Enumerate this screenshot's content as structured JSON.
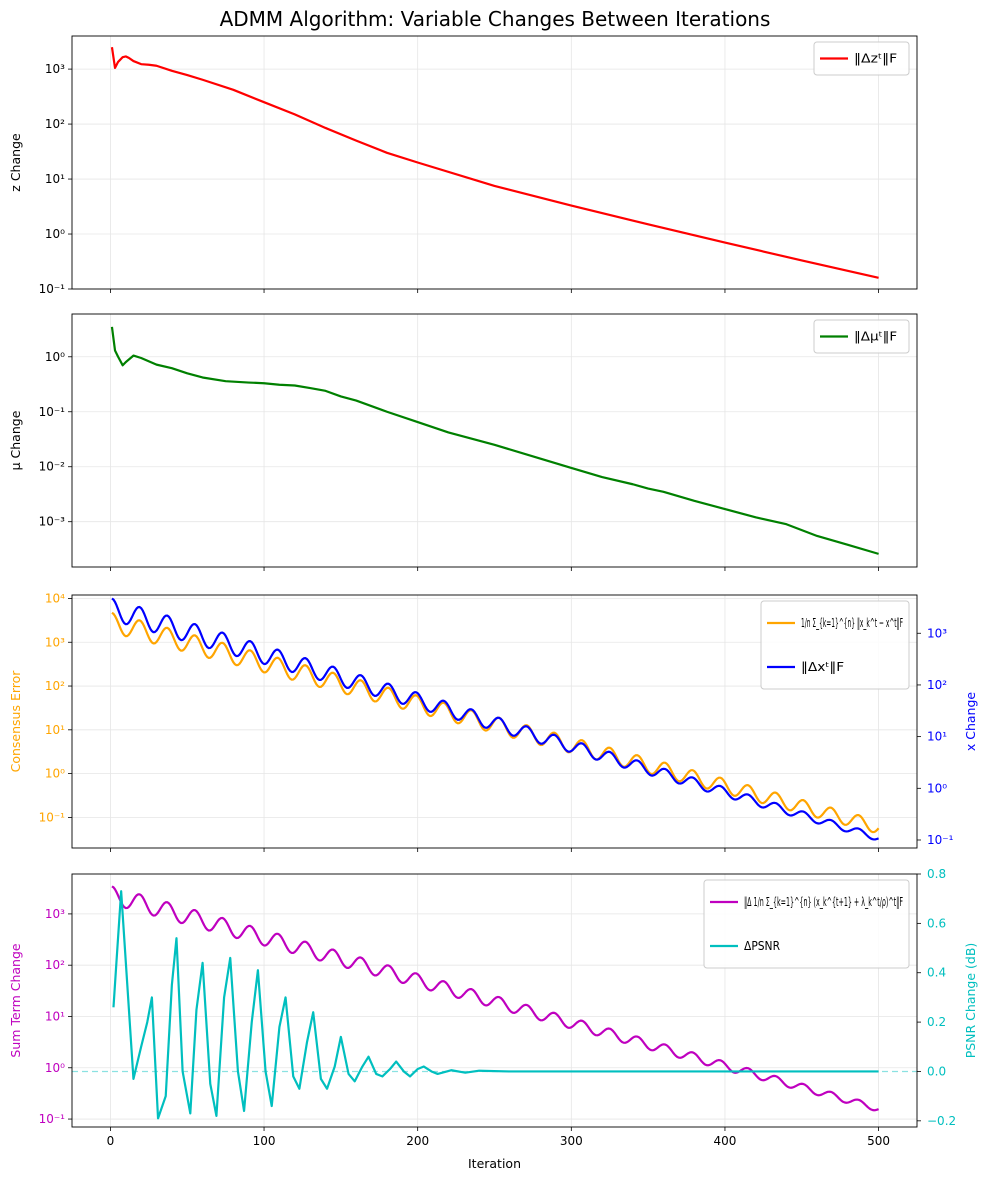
{
  "title": "ADMM Algorithm: Variable Changes Between Iterations",
  "chart_data": [
    {
      "type": "line",
      "ylabel": "z Change",
      "yscale": "log",
      "ylim": [
        0.1,
        4000
      ],
      "xlim": [
        -25,
        525
      ],
      "xticks": [
        0,
        100,
        200,
        300,
        400,
        500
      ],
      "yticks": [
        0.1,
        1,
        10,
        100,
        1000
      ],
      "yticklabels": [
        "10⁻¹",
        "10⁰",
        "10¹",
        "10²",
        "10³"
      ],
      "grid": true,
      "legend_position": "top-right",
      "series": [
        {
          "name": "‖Δzᵗ‖F",
          "color": "#ff0000",
          "x": [
            1,
            3,
            5,
            8,
            10,
            12,
            15,
            20,
            25,
            30,
            40,
            50,
            60,
            80,
            100,
            120,
            140,
            160,
            180,
            200,
            250,
            300,
            350,
            400,
            450,
            500
          ],
          "y": [
            2500,
            1050,
            1350,
            1650,
            1700,
            1600,
            1400,
            1230,
            1200,
            1150,
            930,
            780,
            640,
            420,
            250,
            150,
            85,
            50,
            30,
            20,
            7.5,
            3.3,
            1.5,
            0.7,
            0.33,
            0.16
          ]
        }
      ]
    },
    {
      "type": "line",
      "ylabel": "μ Change",
      "yscale": "log",
      "ylim": [
        0.00015,
        6
      ],
      "xlim": [
        -25,
        525
      ],
      "xticks": [
        0,
        100,
        200,
        300,
        400,
        500
      ],
      "yticks": [
        0.001,
        0.01,
        0.1,
        1
      ],
      "yticklabels": [
        "10⁻³",
        "10⁻²",
        "10⁻¹",
        "10⁰"
      ],
      "grid": true,
      "legend_position": "top-right",
      "series": [
        {
          "name": "‖Δμᵗ‖F",
          "color": "#008000",
          "x": [
            1,
            3,
            5,
            8,
            10,
            15,
            20,
            30,
            40,
            50,
            60,
            75,
            90,
            100,
            110,
            120,
            130,
            140,
            150,
            160,
            180,
            200,
            220,
            250,
            280,
            300,
            320,
            340,
            350,
            360,
            380,
            400,
            420,
            440,
            460,
            480,
            500
          ],
          "y": [
            3.5,
            1.3,
            1.0,
            0.7,
            0.8,
            1.05,
            0.95,
            0.72,
            0.62,
            0.5,
            0.42,
            0.36,
            0.34,
            0.33,
            0.31,
            0.3,
            0.27,
            0.24,
            0.19,
            0.16,
            0.1,
            0.065,
            0.042,
            0.025,
            0.014,
            0.0095,
            0.0065,
            0.0048,
            0.004,
            0.0035,
            0.0024,
            0.0017,
            0.0012,
            0.0009,
            0.00055,
            0.00038,
            0.00026
          ]
        }
      ]
    },
    {
      "type": "line",
      "ylabel": "Consensus Error",
      "y2label": "x Change",
      "yscale": "log",
      "ylim": [
        0.02,
        12000
      ],
      "ylim_right": [
        0.07,
        5500
      ],
      "xlim": [
        -25,
        525
      ],
      "xticks": [
        0,
        100,
        200,
        300,
        400,
        500
      ],
      "yticks": [
        0.1,
        1,
        10,
        100,
        1000,
        10000
      ],
      "yticklabels": [
        "10⁻¹",
        "10⁰",
        "10¹",
        "10²",
        "10³",
        "10⁴"
      ],
      "y2ticks": [
        0.1,
        1,
        10,
        100,
        1000
      ],
      "y2ticklabels": [
        "10⁻¹",
        "10⁰",
        "10¹",
        "10²",
        "10³"
      ],
      "axis_colors": {
        "left": "#ffa500",
        "right": "#0000ff"
      },
      "grid": true,
      "legend_position": "top-right",
      "oscillation_period": 18,
      "series": [
        {
          "name": "1/n Σ_{k=1}^{n} ‖x_k^t − x^t‖F",
          "color": "#ffa500",
          "axis": "left",
          "trend_x": [
            1,
            500
          ],
          "trend_y": [
            2800,
            0.06
          ],
          "oscillation_decades": [
            0.45,
            0.3
          ]
        },
        {
          "name": "‖Δxᵗ‖F",
          "color": "#0000ff",
          "axis": "right",
          "trend_x": [
            1,
            500
          ],
          "trend_y": [
            2900,
            0.11
          ],
          "oscillation_decades": [
            0.42,
            0.12
          ]
        }
      ]
    },
    {
      "type": "line",
      "ylabel": "Sum Term Change",
      "y2label": "PSNR Change (dB)",
      "yscale": "log",
      "ylim": [
        0.07,
        6000
      ],
      "ylim_right": [
        -0.225,
        0.8
      ],
      "xlim": [
        -25,
        525
      ],
      "xticks": [
        0,
        100,
        200,
        300,
        400,
        500
      ],
      "xticklabels": [
        "0",
        "100",
        "200",
        "300",
        "400",
        "500"
      ],
      "xlabel": "Iteration",
      "yticks": [
        0.1,
        1,
        10,
        100,
        1000
      ],
      "yticklabels": [
        "10⁻¹",
        "10⁰",
        "10¹",
        "10²",
        "10³"
      ],
      "y2ticks": [
        -0.2,
        0.0,
        0.2,
        0.4,
        0.6,
        0.8
      ],
      "y2ticklabels": [
        "−0.2",
        "0.0",
        "0.2",
        "0.4",
        "0.6",
        "0.8"
      ],
      "axis_colors": {
        "left": "#bf00bf",
        "right": "#00bfbf"
      },
      "grid": true,
      "legend_position": "top-right",
      "oscillation_period": 18,
      "reference_line": {
        "y_right": 0,
        "color": "#00bfbf",
        "style": "dashed"
      },
      "series": [
        {
          "name": "‖Δ 1/n Σ_{k=1}^{n} (x_k^{t+1} + λ_k^t/ρ)^t‖F",
          "color": "#bf00bf",
          "axis": "left",
          "trend_x": [
            1,
            500
          ],
          "trend_y": [
            2300,
            0.16
          ],
          "oscillation_decades": [
            0.35,
            0.12
          ]
        },
        {
          "name": "ΔPSNR",
          "color": "#00bfbf",
          "axis": "right",
          "x": [
            2,
            4,
            7,
            11,
            15,
            20,
            24,
            27,
            31,
            36,
            40,
            43,
            47,
            52,
            56,
            60,
            65,
            69,
            74,
            78,
            83,
            87,
            92,
            96,
            101,
            105,
            110,
            114,
            119,
            123,
            128,
            132,
            137,
            141,
            146,
            150,
            155,
            159,
            164,
            168,
            173,
            177,
            182,
            186,
            191,
            195,
            200,
            204,
            209,
            213,
            222,
            231,
            240,
            260,
            300,
            400,
            500
          ],
          "y": [
            0.26,
            0.45,
            0.73,
            0.35,
            -0.03,
            0.1,
            0.2,
            0.3,
            -0.19,
            -0.1,
            0.35,
            0.54,
            0.0,
            -0.17,
            0.25,
            0.44,
            -0.05,
            -0.18,
            0.3,
            0.46,
            0.0,
            -0.16,
            0.2,
            0.41,
            0.0,
            -0.14,
            0.18,
            0.3,
            -0.02,
            -0.07,
            0.12,
            0.24,
            -0.03,
            -0.07,
            0.02,
            0.14,
            -0.01,
            -0.04,
            0.02,
            0.06,
            -0.01,
            -0.02,
            0.01,
            0.04,
            0.0,
            -0.02,
            0.01,
            0.02,
            0.0,
            -0.01,
            0.005,
            -0.005,
            0.003,
            0.0,
            0.0,
            0.0,
            0.0
          ]
        }
      ]
    }
  ]
}
